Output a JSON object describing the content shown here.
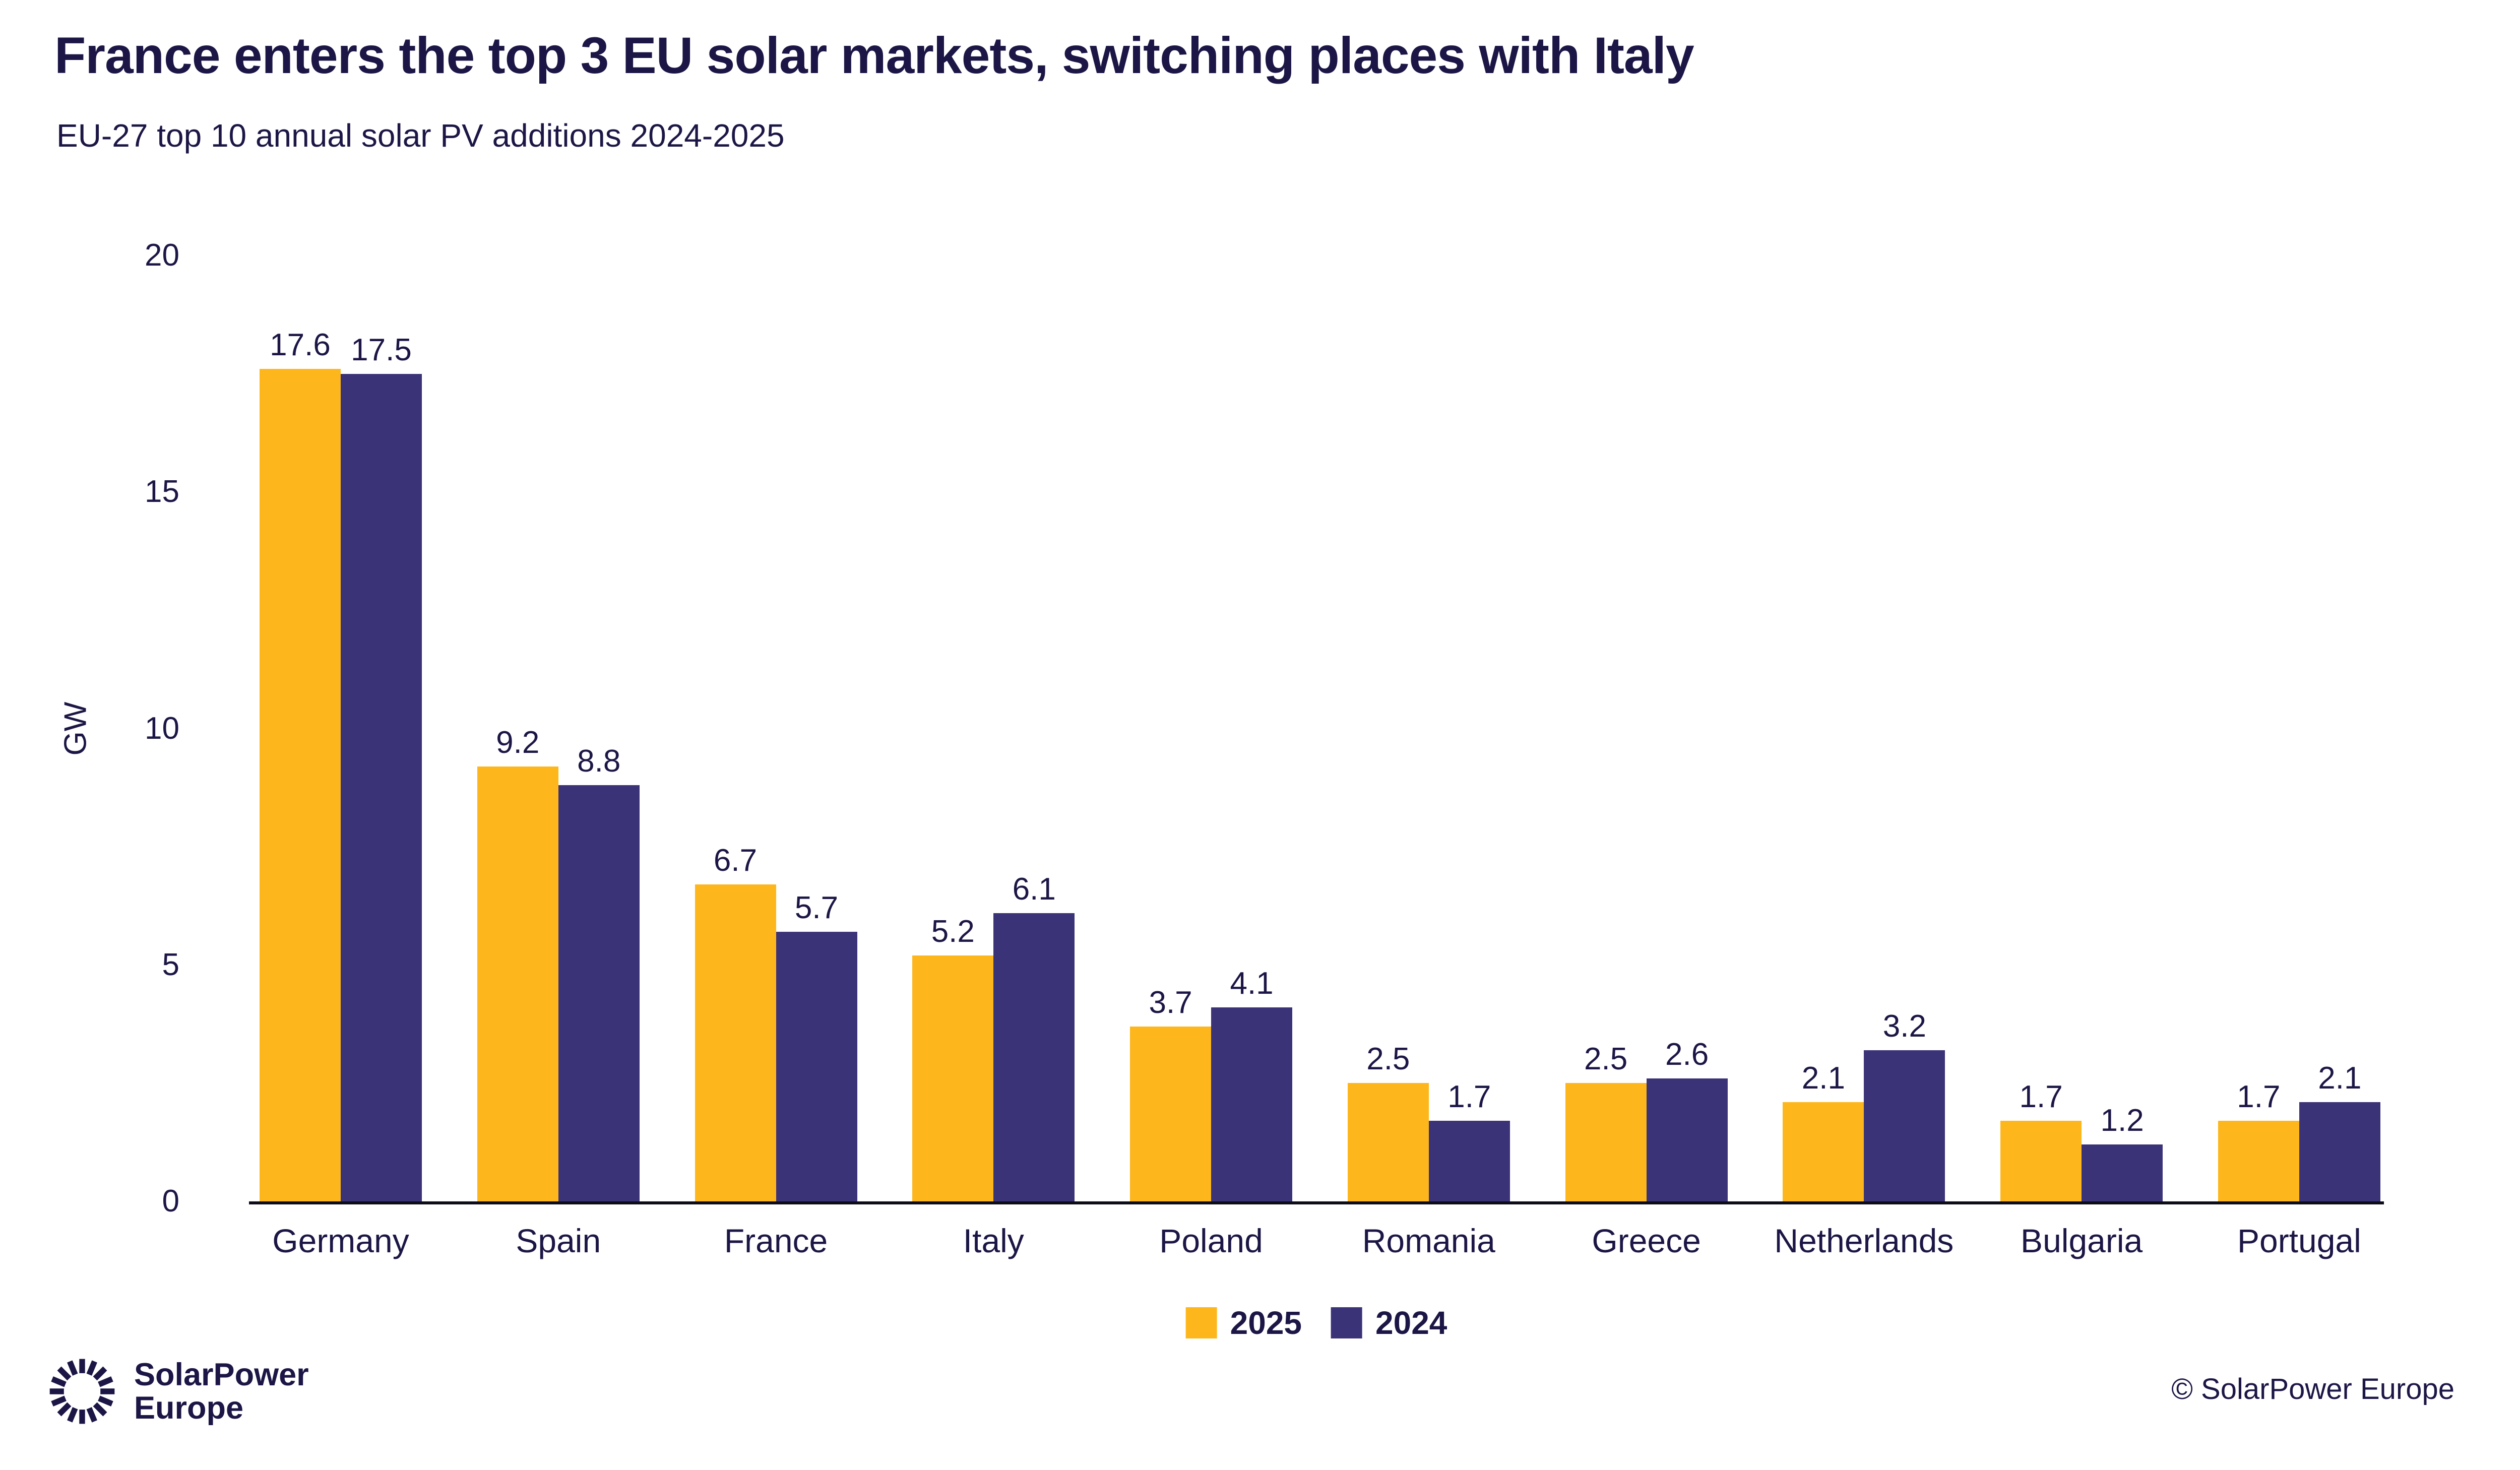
{
  "chart_data": {
    "type": "bar",
    "title": "France enters the top 3 EU solar markets, switching places with Italy",
    "subtitle": "EU-27 top 10 annual solar PV additions 2024-2025",
    "ylabel": "GW",
    "ylim": [
      0,
      20
    ],
    "yticks": [
      0,
      5,
      10,
      15,
      20
    ],
    "grid": false,
    "legend_position": "bottom-center",
    "categories": [
      "Germany",
      "Spain",
      "France",
      "Italy",
      "Poland",
      "Romania",
      "Greece",
      "Netherlands",
      "Bulgaria",
      "Portugal"
    ],
    "series": [
      {
        "name": "2025",
        "color": "#FDB71C",
        "values": [
          17.6,
          9.2,
          6.7,
          5.2,
          3.7,
          2.5,
          2.5,
          2.1,
          1.7,
          1.7
        ]
      },
      {
        "name": "2024",
        "color": "#3B3377",
        "values": [
          17.5,
          8.8,
          5.7,
          6.1,
          4.1,
          1.7,
          2.6,
          3.2,
          1.2,
          2.1
        ]
      }
    ],
    "value_label_decimals": 1
  },
  "footer": {
    "logo_icon": "sunburst-icon",
    "logo_line1": "SolarPower",
    "logo_line2": "Europe",
    "copyright": "© SolarPower Europe"
  },
  "colors": {
    "text": "#1B1645",
    "bar_2025": "#FDB71C",
    "bar_2024": "#3B3377",
    "axis_line": "#0D0D1A",
    "background": "#FFFFFF"
  }
}
